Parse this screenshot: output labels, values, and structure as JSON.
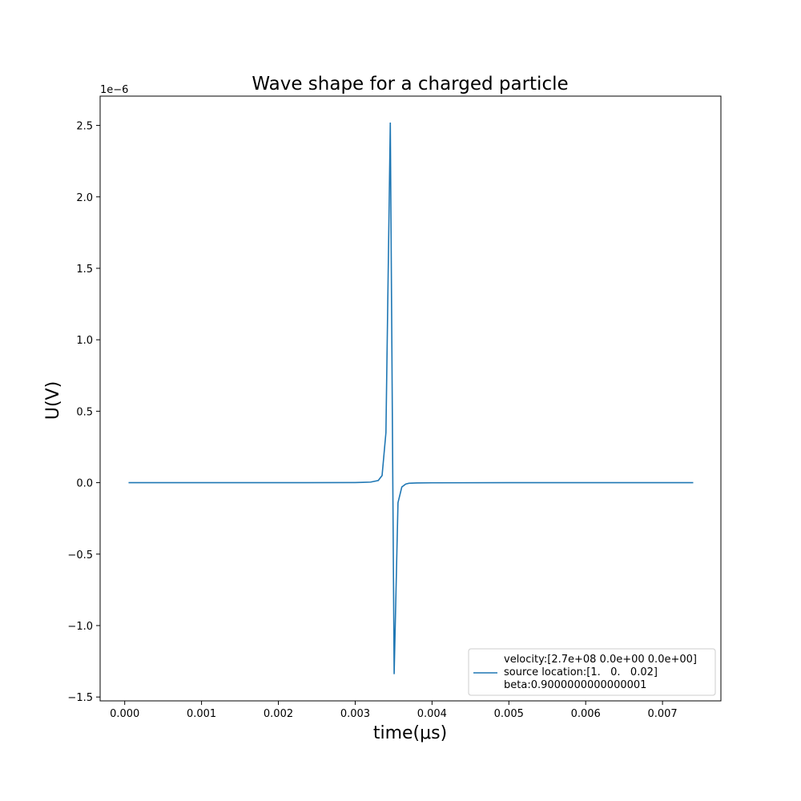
{
  "chart_data": {
    "type": "line",
    "title": "Wave shape for a charged particle",
    "xlabel": "time(μs)",
    "ylabel": "U(V)",
    "y_offset_label": "1e−6",
    "y_scale_factor": 1e-06,
    "xlim": [
      -0.00032,
      0.00776
    ],
    "ylim": [
      -1.527,
      2.705
    ],
    "x_ticks": [
      0.0,
      0.001,
      0.002,
      0.003,
      0.004,
      0.005,
      0.006,
      0.007
    ],
    "x_tick_labels": [
      "0.000",
      "0.001",
      "0.002",
      "0.003",
      "0.004",
      "0.005",
      "0.006",
      "0.007"
    ],
    "y_ticks": [
      -1.5,
      -1.0,
      -0.5,
      0.0,
      0.5,
      1.0,
      1.5,
      2.0,
      2.5
    ],
    "y_tick_labels": [
      "−1.5",
      "−1.0",
      "−0.5",
      "0.0",
      "0.5",
      "1.0",
      "1.5",
      "2.0",
      "2.5"
    ],
    "grid": false,
    "legend_position": "lower-right",
    "series_color": "#1f77b4",
    "series": [
      {
        "legend_lines": [
          "velocity:[2.7e+08 0.0e+00 0.0e+00]",
          "source location:[1.   0.   0.02]",
          "beta:0.9000000000000001"
        ],
        "x": [
          5e-05,
          0.001,
          0.002,
          0.003,
          0.0031,
          0.0032,
          0.0033,
          0.00335,
          0.0034,
          0.003457,
          0.003507,
          0.003557,
          0.003607,
          0.003657,
          0.0037,
          0.0038,
          0.004,
          0.005,
          0.006,
          0.0074
        ],
        "y": [
          0.0,
          0.0,
          0.0,
          0.001,
          0.002,
          0.004,
          0.015,
          0.05,
          0.35,
          2.52,
          -1.34,
          -0.14,
          -0.03,
          -0.01,
          -0.004,
          -0.002,
          -0.001,
          0.0,
          0.0,
          0.0
        ]
      }
    ]
  }
}
